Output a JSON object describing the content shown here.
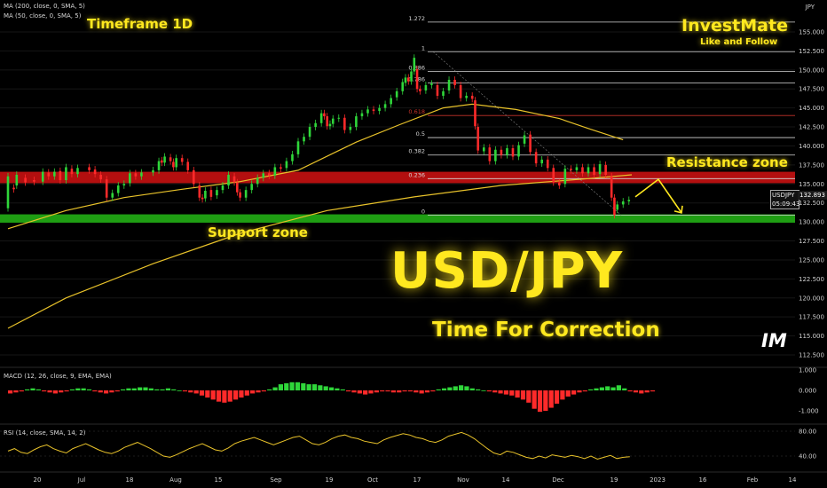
{
  "legend": {
    "ma200": "MA (200, close, 0, SMA, 5)",
    "ma50": "MA (50, close, 0, SMA, 5)",
    "macd": "MACD (12, 26, close, 9, EMA, EMA)",
    "rsi": "RSI (14, close, SMA, 14, 2)"
  },
  "annotations": {
    "timeframe": "Timeframe 1D",
    "brand": "InvestMate",
    "brand_sub": "Like and Follow",
    "resistance": "Resistance zone",
    "support": "Support zone",
    "title": "USD/JPY",
    "subtitle": "Time For Correction",
    "logo": "IM"
  },
  "symbol_box": {
    "symbol": "USDJPY",
    "price": "132.893",
    "countdown": "05:09:43"
  },
  "colors": {
    "bull": "#2fd63a",
    "bear": "#ff2a2a",
    "ma": "#e8c22a",
    "resistance_zone": "#b30f0f",
    "support_zone": "#1f9e13",
    "fib_line": "#d6d6d6",
    "fib_618": "#c8332a",
    "accent": "#ffe81f",
    "rsi_line": "#e8c22a"
  },
  "chart_data": [
    {
      "type": "candlestick",
      "y_axis_title": "JPY",
      "ylim": [
        110,
        157.5
      ],
      "x_ticks": [
        "20",
        "Jul",
        "18",
        "Aug",
        "15",
        "Sep",
        "19",
        "Oct",
        "17",
        "Nov",
        "14",
        "Dec",
        "19",
        "2023",
        "16",
        "Feb",
        "14"
      ],
      "y_ticks": [
        "155.000",
        "152.500",
        "150.000",
        "147.500",
        "145.000",
        "142.500",
        "140.000",
        "137.500",
        "135.000",
        "132.500",
        "130.000",
        "127.500",
        "125.000",
        "122.500",
        "120.000",
        "117.500",
        "115.000",
        "112.500"
      ],
      "last_price": 132.893,
      "candles": [
        [
          0,
          131.8,
          136.0
        ],
        [
          2,
          134.5,
          134.3
        ],
        [
          3,
          134.8,
          136.2
        ],
        [
          6,
          135.8,
          135.2
        ],
        [
          9,
          135.5,
          135.3
        ],
        [
          12,
          135.3,
          136.6
        ],
        [
          14,
          136.5,
          136.0
        ],
        [
          16,
          136.0,
          136.6
        ],
        [
          18,
          136.7,
          135.5
        ],
        [
          20,
          135.5,
          137.2
        ],
        [
          22,
          137.0,
          136.3
        ],
        [
          24,
          136.3,
          137.1
        ],
        [
          28,
          137.2,
          136.8
        ],
        [
          30,
          136.9,
          136.3
        ],
        [
          32,
          136.2,
          135.6
        ],
        [
          34,
          135.6,
          133.2
        ],
        [
          36,
          133.2,
          133.8
        ],
        [
          38,
          133.8,
          134.8
        ],
        [
          40,
          134.8,
          135.0
        ],
        [
          42,
          135.1,
          136.4
        ],
        [
          44,
          136.4,
          136.0
        ],
        [
          46,
          136.0,
          136.5
        ],
        [
          50,
          136.5,
          136.8
        ],
        [
          52,
          136.8,
          138.0
        ],
        [
          53,
          138.1,
          137.8
        ],
        [
          54,
          137.8,
          138.6
        ],
        [
          56,
          138.5,
          138.0
        ],
        [
          57,
          137.9,
          137.2
        ],
        [
          58,
          137.2,
          138.4
        ],
        [
          60,
          138.4,
          137.9
        ],
        [
          62,
          137.9,
          136.8
        ],
        [
          64,
          136.8,
          135.0
        ],
        [
          66,
          134.8,
          133.2
        ],
        [
          67,
          133.2,
          133.0
        ],
        [
          68,
          133.1,
          134.1
        ],
        [
          70,
          134.2,
          133.3
        ],
        [
          72,
          133.5,
          134.2
        ],
        [
          74,
          134.2,
          134.8
        ],
        [
          76,
          134.8,
          136.2
        ],
        [
          78,
          136.0,
          135.2
        ],
        [
          79,
          135.2,
          133.9
        ],
        [
          80,
          133.9,
          133.2
        ],
        [
          82,
          133.2,
          134.2
        ],
        [
          84,
          134.2,
          135.0
        ],
        [
          86,
          135.0,
          135.8
        ],
        [
          88,
          135.8,
          136.4
        ],
        [
          90,
          136.4,
          136.1
        ],
        [
          92,
          136.1,
          137.2
        ],
        [
          94,
          137.2,
          137.0
        ],
        [
          96,
          137.1,
          138.0
        ],
        [
          98,
          138.0,
          138.9
        ],
        [
          100,
          138.9,
          140.6
        ],
        [
          102,
          140.6,
          141.2
        ],
        [
          104,
          141.2,
          142.5
        ],
        [
          106,
          142.5,
          143.0
        ],
        [
          108,
          143.0,
          144.3
        ],
        [
          109,
          144.3,
          143.9
        ],
        [
          110,
          143.9,
          142.6
        ],
        [
          111,
          142.6,
          142.9
        ],
        [
          112,
          142.9,
          143.6
        ],
        [
          114,
          143.6,
          143.7
        ],
        [
          116,
          143.7,
          142.1
        ],
        [
          118,
          142.1,
          142.5
        ],
        [
          120,
          142.5,
          143.9
        ],
        [
          122,
          143.9,
          144.3
        ],
        [
          124,
          144.3,
          144.8
        ],
        [
          126,
          144.8,
          144.6
        ],
        [
          128,
          144.6,
          145.0
        ],
        [
          130,
          145.0,
          145.5
        ],
        [
          132,
          145.5,
          146.3
        ],
        [
          134,
          146.4,
          147.2
        ],
        [
          136,
          147.2,
          148.4
        ],
        [
          137,
          148.3,
          149.0
        ],
        [
          138,
          149.0,
          148.5
        ],
        [
          139,
          148.5,
          149.8
        ],
        [
          140,
          149.8,
          151.6
        ],
        [
          141,
          150.1,
          147.5
        ],
        [
          142,
          147.5,
          147.2
        ],
        [
          144,
          147.3,
          148.0
        ],
        [
          146,
          148.0,
          148.2
        ],
        [
          148,
          148.0,
          146.6
        ],
        [
          150,
          146.6,
          147.2
        ],
        [
          152,
          147.3,
          148.7
        ],
        [
          154,
          148.7,
          148.0
        ],
        [
          156,
          148.0,
          146.3
        ],
        [
          158,
          146.3,
          146.6
        ],
        [
          160,
          146.6,
          146.2
        ],
        [
          161,
          146.0,
          142.6
        ],
        [
          162,
          142.5,
          139.4
        ],
        [
          164,
          139.3,
          139.8
        ],
        [
          166,
          139.8,
          138.0
        ],
        [
          168,
          138.0,
          139.5
        ],
        [
          170,
          139.5,
          138.8
        ],
        [
          172,
          138.8,
          139.7
        ],
        [
          174,
          139.7,
          138.6
        ],
        [
          176,
          138.6,
          140.1
        ],
        [
          178,
          140.3,
          141.4
        ],
        [
          180,
          141.5,
          139.2
        ],
        [
          182,
          139.2,
          137.7
        ],
        [
          184,
          137.7,
          138.2
        ],
        [
          186,
          138.2,
          137.1
        ],
        [
          188,
          137.1,
          135.2
        ],
        [
          190,
          135.2,
          134.8
        ],
        [
          192,
          135.0,
          137.0
        ],
        [
          194,
          137.0,
          136.8
        ],
        [
          196,
          136.8,
          137.2
        ],
        [
          198,
          137.2,
          136.4
        ],
        [
          200,
          136.4,
          137.2
        ],
        [
          202,
          137.2,
          136.2
        ],
        [
          204,
          136.3,
          137.6
        ],
        [
          206,
          137.5,
          136.2
        ],
        [
          208,
          136.0,
          133.2
        ],
        [
          209,
          133.2,
          130.9
        ],
        [
          210,
          131.6,
          132.3
        ],
        [
          212,
          132.3,
          132.7
        ],
        [
          214,
          132.7,
          132.9
        ]
      ],
      "ma200": [
        [
          0,
          116
        ],
        [
          20,
          120
        ],
        [
          50,
          124.5
        ],
        [
          80,
          128.5
        ],
        [
          110,
          131.5
        ],
        [
          140,
          133.3
        ],
        [
          170,
          134.8
        ],
        [
          200,
          135.7
        ],
        [
          215,
          136.2
        ]
      ],
      "ma50": [
        [
          0,
          129.1
        ],
        [
          20,
          131.5
        ],
        [
          40,
          133.2
        ],
        [
          60,
          134.3
        ],
        [
          80,
          135.3
        ],
        [
          100,
          136.8
        ],
        [
          120,
          140.5
        ],
        [
          135,
          142.8
        ],
        [
          150,
          145
        ],
        [
          160,
          145.5
        ],
        [
          175,
          144.8
        ],
        [
          190,
          143.6
        ],
        [
          200,
          142.3
        ],
        [
          212,
          140.8
        ]
      ],
      "fibonacci": [
        {
          "label": "1.272",
          "price": 156.3
        },
        {
          "label": "1",
          "price": 152.4
        },
        {
          "label": "0.886",
          "price": 149.8
        },
        {
          "label": "0.786",
          "price": 148.3
        },
        {
          "label": "0.618",
          "price": 144.0
        },
        {
          "label": "0.5",
          "price": 141.1
        },
        {
          "label": "0.382",
          "price": 138.8
        },
        {
          "label": "0.236",
          "price": 135.7
        },
        {
          "label": "0",
          "price": 130.9
        }
      ],
      "resistance_zone": [
        135.1,
        136.6
      ],
      "support_zone": [
        129.9,
        131.0
      ]
    },
    {
      "type": "histogram",
      "name": "MACD",
      "y_ticks": [
        "1.000",
        "0.000",
        "-1.000"
      ],
      "ylim": [
        -1.5,
        1.5
      ],
      "values": [
        -0.15,
        -0.1,
        -0.05,
        0.05,
        0.1,
        0.05,
        -0.05,
        -0.1,
        -0.15,
        -0.1,
        -0.05,
        0.05,
        0.1,
        0.1,
        0.05,
        -0.05,
        -0.1,
        -0.15,
        -0.1,
        -0.05,
        0.05,
        0.1,
        0.1,
        0.15,
        0.15,
        0.1,
        0.05,
        0.05,
        0.1,
        0.05,
        0.0,
        -0.05,
        -0.1,
        -0.15,
        -0.25,
        -0.35,
        -0.45,
        -0.55,
        -0.6,
        -0.55,
        -0.45,
        -0.35,
        -0.25,
        -0.15,
        -0.1,
        -0.05,
        0.05,
        0.15,
        0.3,
        0.35,
        0.4,
        0.4,
        0.35,
        0.3,
        0.3,
        0.25,
        0.2,
        0.15,
        0.1,
        0.05,
        -0.05,
        -0.1,
        -0.15,
        -0.2,
        -0.15,
        -0.1,
        -0.05,
        -0.05,
        -0.1,
        -0.1,
        -0.05,
        -0.05,
        -0.1,
        -0.15,
        -0.1,
        -0.05,
        0.05,
        0.1,
        0.15,
        0.2,
        0.25,
        0.2,
        0.1,
        0.05,
        0.0,
        -0.05,
        -0.1,
        -0.15,
        -0.2,
        -0.25,
        -0.35,
        -0.45,
        -0.6,
        -0.9,
        -1.05,
        -1.0,
        -0.85,
        -0.65,
        -0.45,
        -0.3,
        -0.2,
        -0.1,
        -0.05,
        0.05,
        0.1,
        0.15,
        0.2,
        0.15,
        0.25,
        0.1,
        -0.05,
        -0.1,
        -0.15,
        -0.1,
        -0.05
      ]
    },
    {
      "type": "line",
      "name": "RSI",
      "y_ticks": [
        "80.00",
        "40.00"
      ],
      "ylim": [
        20,
        90
      ],
      "values": [
        48,
        52,
        46,
        44,
        50,
        55,
        58,
        52,
        48,
        45,
        52,
        56,
        60,
        55,
        50,
        46,
        44,
        48,
        54,
        58,
        62,
        57,
        52,
        46,
        40,
        38,
        42,
        47,
        52,
        56,
        60,
        55,
        50,
        48,
        53,
        60,
        64,
        67,
        70,
        66,
        62,
        58,
        62,
        66,
        70,
        72,
        66,
        60,
        58,
        62,
        68,
        72,
        74,
        70,
        68,
        64,
        62,
        60,
        66,
        70,
        73,
        76,
        74,
        70,
        68,
        64,
        62,
        66,
        72,
        75,
        78,
        74,
        68,
        60,
        52,
        45,
        42,
        48,
        46,
        42,
        38,
        36,
        40,
        37,
        42,
        40,
        38,
        41,
        39,
        36,
        40,
        35,
        38,
        41,
        36,
        38,
        39
      ]
    }
  ]
}
